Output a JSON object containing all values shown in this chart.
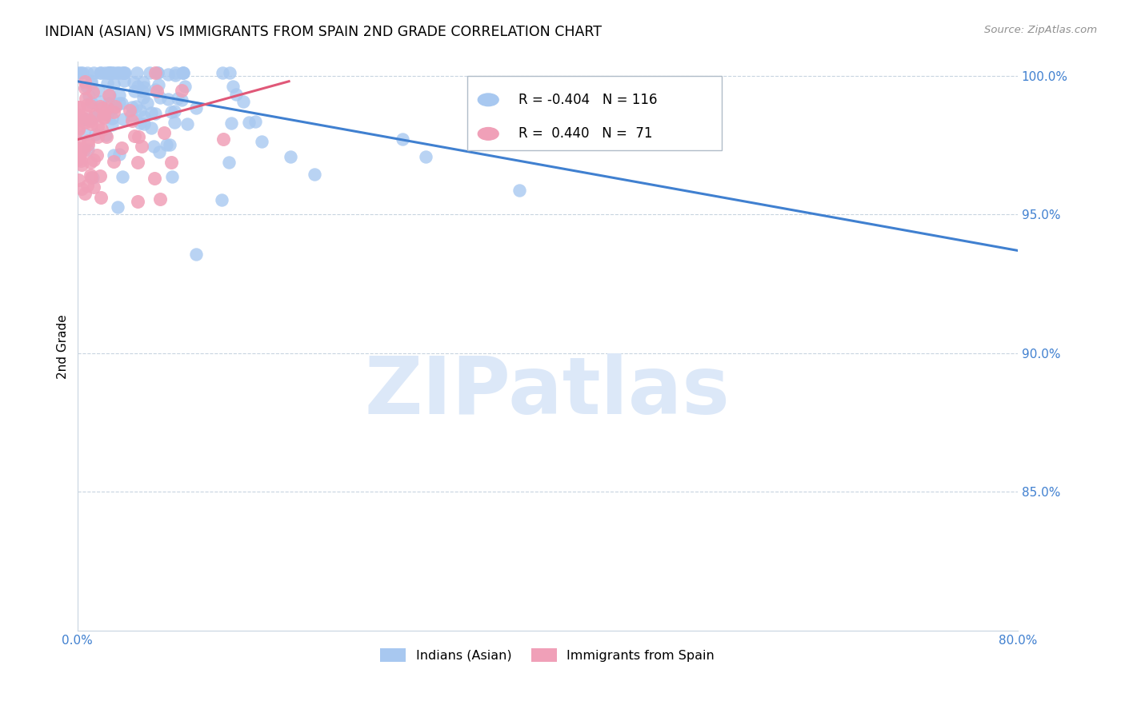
{
  "title": "INDIAN (ASIAN) VS IMMIGRANTS FROM SPAIN 2ND GRADE CORRELATION CHART",
  "source_text": "Source: ZipAtlas.com",
  "ylabel": "2nd Grade",
  "legend_blue_r": "-0.404",
  "legend_blue_n": "116",
  "legend_pink_r": "0.440",
  "legend_pink_n": "71",
  "blue_color": "#a8c8f0",
  "pink_color": "#f0a0b8",
  "blue_line_color": "#4080d0",
  "pink_line_color": "#e05878",
  "watermark_text": "ZIPatlas",
  "watermark_color": "#dce8f8",
  "xlim": [
    0.0,
    0.8
  ],
  "ylim": [
    0.8,
    1.005
  ],
  "yticks": [
    0.85,
    0.9,
    0.95,
    1.0
  ],
  "ytick_labels": [
    "85.0%",
    "90.0%",
    "95.0%",
    "100.0%"
  ],
  "xtick_vals": [
    0.0,
    0.1,
    0.2,
    0.3,
    0.4,
    0.5,
    0.6,
    0.7,
    0.8
  ],
  "blue_trend_x": [
    0.0,
    0.8
  ],
  "blue_trend_y": [
    0.998,
    0.937
  ],
  "pink_trend_x": [
    0.0,
    0.18
  ],
  "pink_trend_y": [
    0.977,
    0.998
  ],
  "figsize": [
    14.06,
    8.92
  ],
  "dpi": 100
}
